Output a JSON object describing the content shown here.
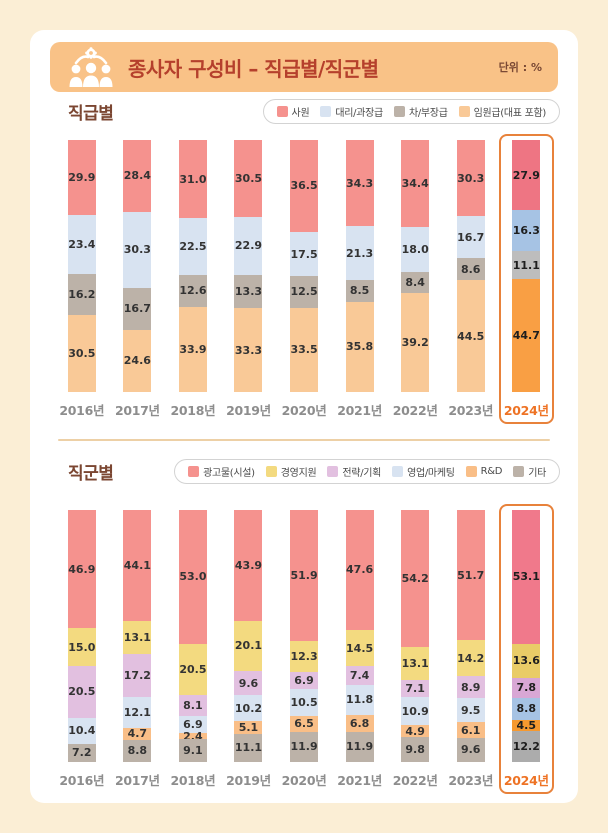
{
  "header": {
    "title": "종사자 구성비 – 직급별/직군별",
    "unit_label": "단위 : %",
    "bar_color": "#F9C287",
    "title_color": "#B5402C"
  },
  "highlight_border_color": "#E8823B",
  "chart_data": [
    {
      "type": "bar",
      "stacked": true,
      "section_title": "직급별",
      "unit": "%",
      "legend_position": "top-right",
      "ylim": [
        0,
        100
      ],
      "categories": [
        "2016년",
        "2017년",
        "2018년",
        "2019년",
        "2020년",
        "2021년",
        "2022년",
        "2023년",
        "2024년"
      ],
      "highlight_category": "2024년",
      "series": [
        {
          "name": "사원",
          "color": "#F5928E",
          "highlight_color": "#EE7583",
          "values": [
            29.9,
            28.4,
            31.0,
            30.5,
            36.5,
            34.3,
            34.4,
            30.3,
            27.9
          ]
        },
        {
          "name": "대리/과장급",
          "color": "#D8E3F1",
          "highlight_color": "#A6C3E4",
          "values": [
            23.4,
            30.3,
            22.5,
            22.9,
            17.5,
            21.3,
            18.0,
            16.7,
            16.3
          ]
        },
        {
          "name": "차/부장급",
          "color": "#BCB2A8",
          "highlight_color": "#BDBDBD",
          "values": [
            16.2,
            16.7,
            12.6,
            13.3,
            12.5,
            8.5,
            8.4,
            8.6,
            11.1
          ]
        },
        {
          "name": "임원급(대표 포함)",
          "color": "#F9C997",
          "highlight_color": "#F99F44",
          "values": [
            30.5,
            24.6,
            33.9,
            33.3,
            33.5,
            35.8,
            39.2,
            44.5,
            44.7
          ]
        }
      ]
    },
    {
      "type": "bar",
      "stacked": true,
      "section_title": "직군별",
      "unit": "%",
      "legend_position": "top-right",
      "ylim": [
        0,
        100
      ],
      "categories": [
        "2016년",
        "2017년",
        "2018년",
        "2019년",
        "2020년",
        "2021년",
        "2022년",
        "2023년",
        "2024년"
      ],
      "highlight_category": "2024년",
      "series": [
        {
          "name": "광고물(시설)",
          "color": "#F5928E",
          "highlight_color": "#F0798B",
          "values": [
            46.9,
            44.1,
            53.0,
            43.9,
            51.9,
            47.6,
            54.2,
            51.7,
            53.1
          ]
        },
        {
          "name": "경영지원",
          "color": "#F3DA80",
          "highlight_color": "#E9CC67",
          "values": [
            15.0,
            13.1,
            20.5,
            20.1,
            12.3,
            14.5,
            13.1,
            14.2,
            13.6
          ]
        },
        {
          "name": "전략/기획",
          "color": "#E2C0E0",
          "highlight_color": "#D8A7D5",
          "values": [
            20.5,
            17.2,
            8.1,
            9.6,
            6.9,
            7.4,
            7.1,
            8.9,
            7.8
          ]
        },
        {
          "name": "영업/마케팅",
          "color": "#D8E3F1",
          "highlight_color": "#A6C3E4",
          "values": [
            10.4,
            12.1,
            6.9,
            10.2,
            10.5,
            11.8,
            10.9,
            9.5,
            8.8
          ]
        },
        {
          "name": "R&D",
          "color": "#F9BE87",
          "highlight_color": "#F6992F",
          "values": [
            0,
            4.7,
            2.4,
            5.1,
            6.5,
            6.8,
            4.9,
            6.1,
            4.5
          ]
        },
        {
          "name": "기타",
          "color": "#BCB2A8",
          "highlight_color": "#ACACAC",
          "values": [
            7.2,
            8.8,
            9.1,
            11.1,
            11.9,
            11.9,
            9.8,
            9.6,
            12.2
          ]
        }
      ]
    }
  ]
}
